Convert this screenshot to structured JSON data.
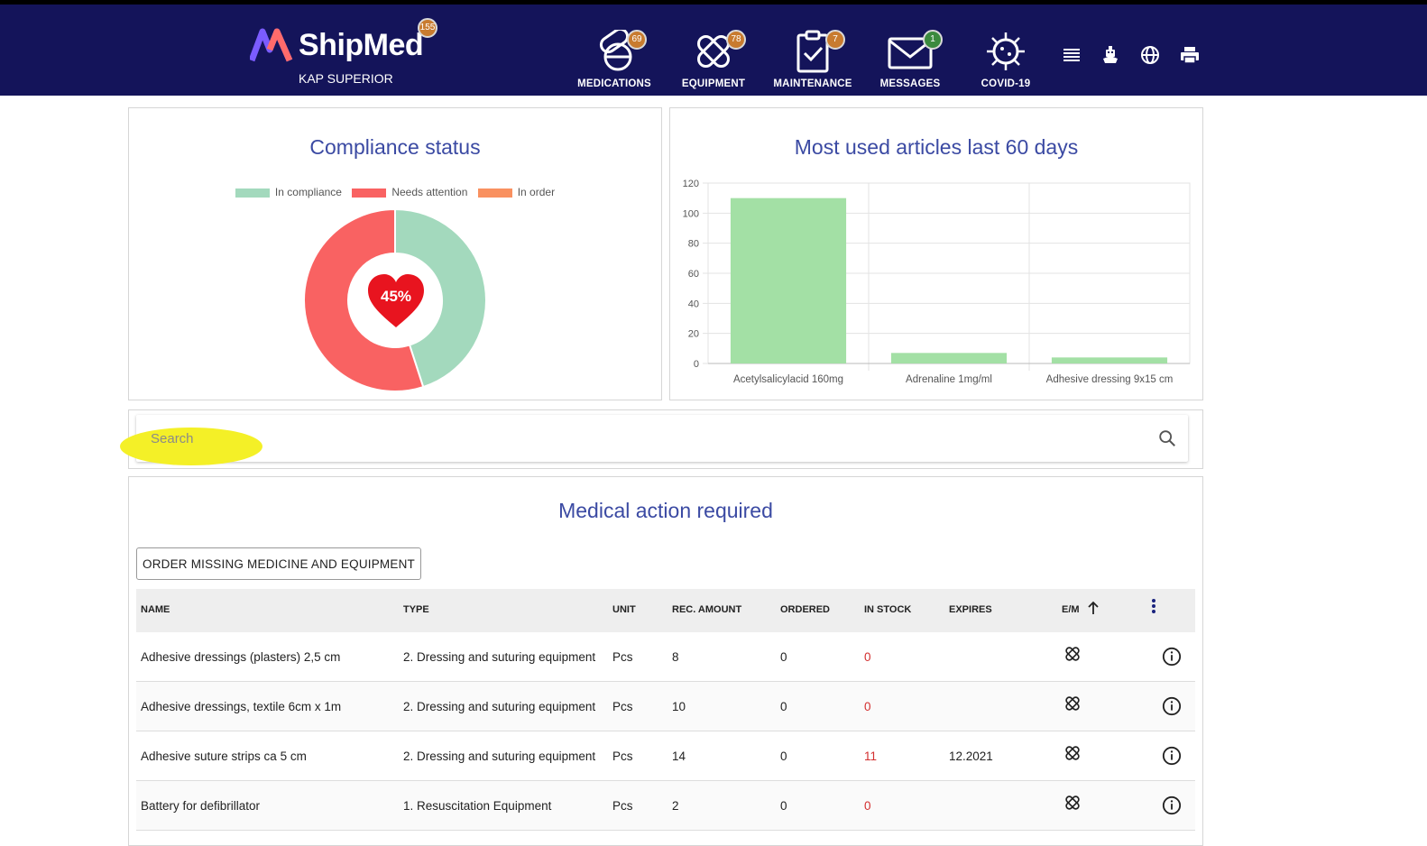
{
  "header": {
    "brand": "ShipMed",
    "vessel": "KAP SUPERIOR",
    "brand_badge": "155",
    "nav": [
      {
        "label": "MEDICATIONS",
        "badge": "69"
      },
      {
        "label": "EQUIPMENT",
        "badge": "78"
      },
      {
        "label": "MAINTENANCE",
        "badge": "7"
      },
      {
        "label": "MESSAGES",
        "badge": "1"
      },
      {
        "label": "COVID-19",
        "badge": ""
      }
    ],
    "tools": [
      "list-icon",
      "ship-icon",
      "globe-icon",
      "printer-icon"
    ]
  },
  "compliance": {
    "title": "Compliance status",
    "legend": [
      "In compliance",
      "Needs attention",
      "In order"
    ],
    "center_label": "45%"
  },
  "most_used": {
    "title": "Most used articles last 60 days"
  },
  "chart_data": [
    {
      "type": "pie",
      "title": "Compliance status",
      "categories": [
        "In compliance",
        "Needs attention",
        "In order"
      ],
      "values": [
        45,
        55,
        0
      ],
      "colors": [
        "#a3d9bd",
        "#f96262",
        "#f99160"
      ],
      "legend": "top",
      "center_text": "45%"
    },
    {
      "type": "bar",
      "title": "Most used articles last 60 days",
      "categories": [
        "Acetylsalicylacid 160mg",
        "Adrenaline 1mg/ml",
        "Adhesive dressing 9x15 cm"
      ],
      "values": [
        110,
        7,
        4
      ],
      "ylim": [
        0,
        120
      ],
      "yticks": [
        "0",
        "20",
        "40",
        "60",
        "80",
        "100",
        "120"
      ],
      "color": "#a3e0a5",
      "grid": true
    }
  ],
  "search": {
    "placeholder": "Search"
  },
  "actions": {
    "title": "Medical action required",
    "order_button": "ORDER MISSING MEDICINE AND EQUIPMENT",
    "columns": [
      "NAME",
      "TYPE",
      "UNIT",
      "REC. AMOUNT",
      "ORDERED",
      "IN STOCK",
      "EXPIRES",
      "E/M"
    ],
    "rows": [
      {
        "name": "Adhesive dressings (plasters) 2,5 cm",
        "type": "2. Dressing and suturing equipment",
        "unit": "Pcs",
        "rec": "8",
        "ordered": "0",
        "stock": "0",
        "expires": ""
      },
      {
        "name": "Adhesive dressings, textile 6cm x 1m",
        "type": "2. Dressing and suturing equipment",
        "unit": "Pcs",
        "rec": "10",
        "ordered": "0",
        "stock": "0",
        "expires": ""
      },
      {
        "name": "Adhesive suture strips ca 5 cm",
        "type": "2. Dressing and suturing equipment",
        "unit": "Pcs",
        "rec": "14",
        "ordered": "0",
        "stock": "11",
        "expires": "12.2021"
      },
      {
        "name": "Battery for defibrillator",
        "type": "1. Resuscitation Equipment",
        "unit": "Pcs",
        "rec": "2",
        "ordered": "0",
        "stock": "0",
        "expires": ""
      }
    ]
  }
}
